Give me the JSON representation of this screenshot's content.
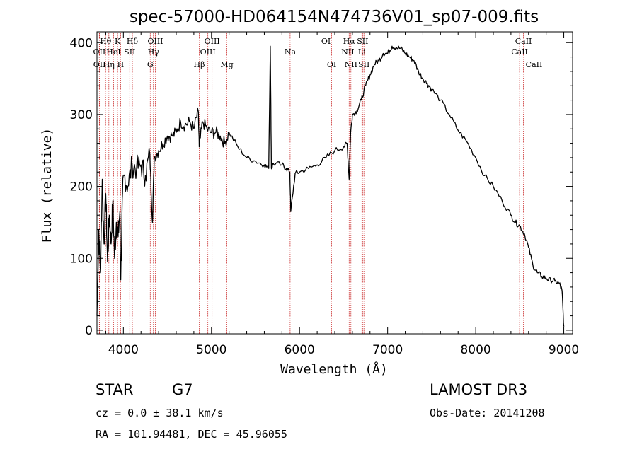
{
  "chart_data": {
    "type": "line",
    "title": "spec-57000-HD064154N474736V01_sp07-009.fits",
    "xlabel": "Wavelength (Å)",
    "ylabel": "Flux (relative)",
    "xlim": [
      3700,
      9100
    ],
    "ylim": [
      -5,
      415
    ],
    "xticks": [
      4000,
      5000,
      6000,
      7000,
      8000,
      9000
    ],
    "yticks": [
      0,
      100,
      200,
      300,
      400
    ],
    "grid": false,
    "series": [
      {
        "name": "flux",
        "color": "#000000",
        "x": [
          3700,
          3720,
          3740,
          3760,
          3780,
          3800,
          3820,
          3840,
          3860,
          3880,
          3900,
          3920,
          3940,
          3960,
          3970,
          3990,
          4010,
          4050,
          4100,
          4150,
          4200,
          4250,
          4300,
          4330,
          4350,
          4400,
          4450,
          4500,
          4550,
          4600,
          4650,
          4700,
          4750,
          4800,
          4850,
          4861,
          4900,
          4950,
          5000,
          5050,
          5100,
          5150,
          5200,
          5300,
          5400,
          5500,
          5600,
          5650,
          5668,
          5680,
          5700,
          5800,
          5850,
          5890,
          5900,
          5950,
          6000,
          6100,
          6200,
          6300,
          6400,
          6500,
          6540,
          6563,
          6580,
          6600,
          6650,
          6700,
          6750,
          6800,
          6850,
          6900,
          6950,
          7000,
          7050,
          7100,
          7150,
          7200,
          7250,
          7300,
          7350,
          7400,
          7450,
          7500,
          7600,
          7700,
          7800,
          7900,
          8000,
          8100,
          8200,
          8300,
          8400,
          8450,
          8500,
          8550,
          8600,
          8650,
          8700,
          8750,
          8800,
          8850,
          8900,
          8950,
          8980,
          9000
        ],
        "y": [
          20,
          140,
          80,
          210,
          120,
          190,
          95,
          160,
          120,
          180,
          100,
          150,
          130,
          165,
          70,
          190,
          215,
          200,
          230,
          225,
          230,
          215,
          245,
          150,
          240,
          250,
          260,
          270,
          270,
          275,
          290,
          285,
          290,
          280,
          305,
          255,
          290,
          280,
          275,
          275,
          270,
          260,
          275,
          255,
          240,
          235,
          230,
          225,
          395,
          225,
          232,
          230,
          225,
          220,
          165,
          218,
          220,
          225,
          230,
          240,
          250,
          255,
          260,
          210,
          275,
          300,
          305,
          320,
          340,
          355,
          370,
          375,
          385,
          385,
          395,
          393,
          392,
          385,
          380,
          375,
          360,
          350,
          343,
          335,
          320,
          300,
          278,
          262,
          240,
          215,
          200,
          180,
          160,
          150,
          145,
          135,
          115,
          90,
          80,
          75,
          72,
          70,
          68,
          65,
          55,
          5
        ]
      }
    ],
    "spectral_lines": [
      {
        "label": "Hθ",
        "wavelength": 3798,
        "row": 1
      },
      {
        "label": "OII",
        "wavelength": 3727,
        "row": 2
      },
      {
        "label": "OII",
        "wavelength": 3729,
        "row": 3
      },
      {
        "label": "K",
        "wavelength": 3934,
        "row": 1
      },
      {
        "label": "HeI",
        "wavelength": 3889,
        "row": 2
      },
      {
        "label": "Hη",
        "wavelength": 3835,
        "row": 3
      },
      {
        "label": "Hδ",
        "wavelength": 4102,
        "row": 1
      },
      {
        "label": "SII",
        "wavelength": 4072,
        "row": 2
      },
      {
        "label": "H",
        "wavelength": 3969,
        "row": 3
      },
      {
        "label": "OIII",
        "wavelength": 4363,
        "row": 1
      },
      {
        "label": "Hγ",
        "wavelength": 4341,
        "row": 2
      },
      {
        "label": "G",
        "wavelength": 4305,
        "row": 3
      },
      {
        "label": "OIII",
        "wavelength": 5007,
        "row": 1
      },
      {
        "label": "OIII",
        "wavelength": 4959,
        "row": 2
      },
      {
        "label": "Hβ",
        "wavelength": 4861,
        "row": 3
      },
      {
        "label": "Mg",
        "wavelength": 5175,
        "row": 3
      },
      {
        "label": "Na",
        "wavelength": 5893,
        "row": 2
      },
      {
        "label": "OI",
        "wavelength": 6300,
        "row": 1
      },
      {
        "label": "OI",
        "wavelength": 6364,
        "row": 3
      },
      {
        "label": "Hα",
        "wavelength": 6563,
        "row": 1
      },
      {
        "label": "NII",
        "wavelength": 6548,
        "row": 2
      },
      {
        "label": "NII",
        "wavelength": 6583,
        "row": 3
      },
      {
        "label": "SII",
        "wavelength": 6716,
        "row": 1
      },
      {
        "label": "Li",
        "wavelength": 6708,
        "row": 2
      },
      {
        "label": "SII",
        "wavelength": 6731,
        "row": 3
      },
      {
        "label": "CaII",
        "wavelength": 8542,
        "row": 1
      },
      {
        "label": "CaII",
        "wavelength": 8498,
        "row": 2
      },
      {
        "label": "CaII",
        "wavelength": 8662,
        "row": 3
      }
    ],
    "line_marker_color": "#cc3333"
  },
  "info": {
    "object_class": "STAR",
    "subclass": "G7",
    "survey": "LAMOST DR3",
    "cz": "cz = 0.0 ± 38.1 km/s",
    "obs_date": "Obs-Date: 20141208",
    "coords": "RA = 101.94481, DEC =  45.96055"
  }
}
